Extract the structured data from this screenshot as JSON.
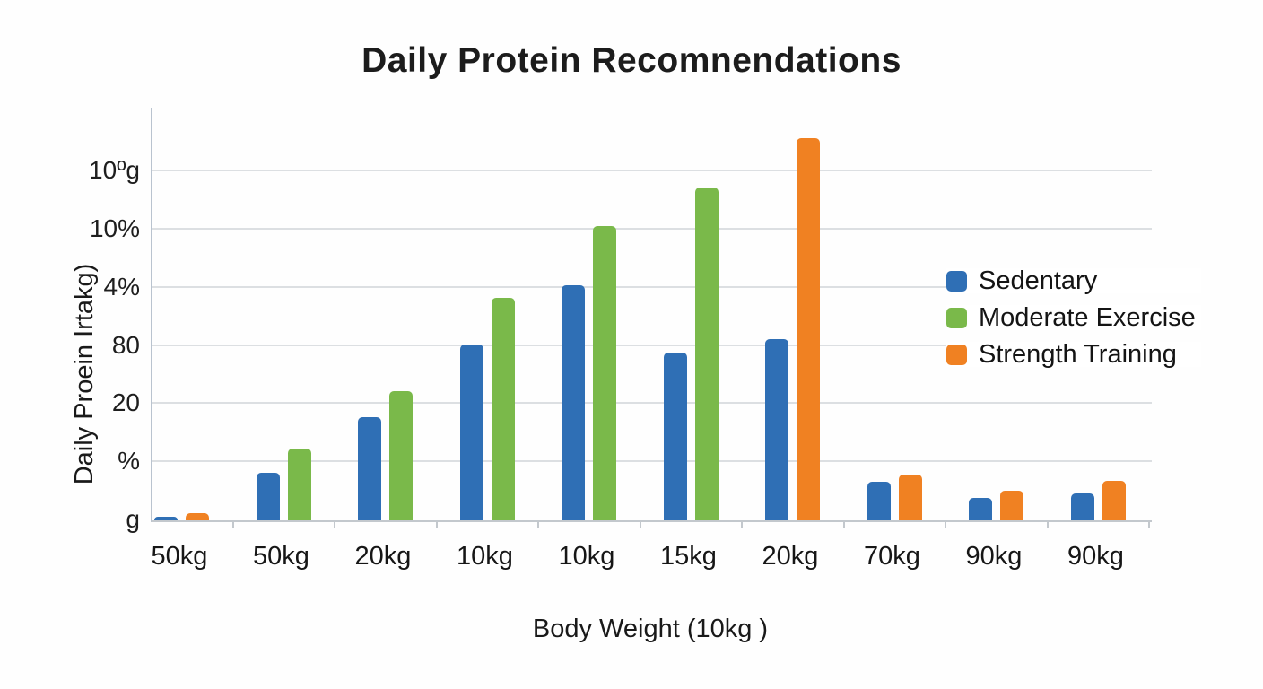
{
  "title": "Daily Protein Recomnendations",
  "chart_data": {
    "type": "bar",
    "title": "Daily Protein Recomnendations",
    "xlabel": "Body Weight (10kg )",
    "ylabel": "Daily Proein Irtakg)",
    "categories": [
      "50kg",
      "50kg",
      "20kg",
      "10kg",
      "10kg",
      "15kg",
      "20kg",
      "70kg",
      "90kg",
      "90kg"
    ],
    "y_tick_labels_bottom_to_top": [
      "g",
      "%",
      "20",
      "80",
      "4%",
      "10%",
      "10ºg"
    ],
    "ylim": [
      0,
      7.1
    ],
    "value_units": "gridline units (axis tick text is garbled in source, 1 unit = one gridline spacing)",
    "grid": "horizontal",
    "legend_position": "right",
    "series": [
      {
        "name": "Sedentary",
        "color": "#2F6FB5",
        "values": [
          0.06,
          0.82,
          1.78,
          3.02,
          4.05,
          2.88,
          3.11,
          0.66,
          0.38,
          0.46
        ]
      },
      {
        "name": "Moderate Exercise",
        "color": "#7AB94A",
        "values": [
          null,
          1.23,
          2.22,
          3.83,
          5.06,
          5.72,
          null,
          null,
          null,
          null
        ]
      },
      {
        "name": "Strength Training",
        "color": "#F08122",
        "values": [
          0.12,
          null,
          null,
          null,
          null,
          null,
          6.58,
          0.78,
          0.51,
          0.68
        ]
      }
    ]
  },
  "legend": {
    "items": [
      {
        "label": "Sedentary",
        "color": "#2F6FB5"
      },
      {
        "label": "Moderate Exercise",
        "color": "#7AB94A"
      },
      {
        "label": "Strength Training",
        "color": "#F08122"
      }
    ]
  },
  "colors": {
    "background": "#FEFEFE",
    "text": "#1B1B1B",
    "gridline": "#DCDFE2",
    "axis": "#C3C8CD",
    "blue": "#2F6FB5",
    "green": "#7AB94A",
    "orange": "#F08122"
  }
}
